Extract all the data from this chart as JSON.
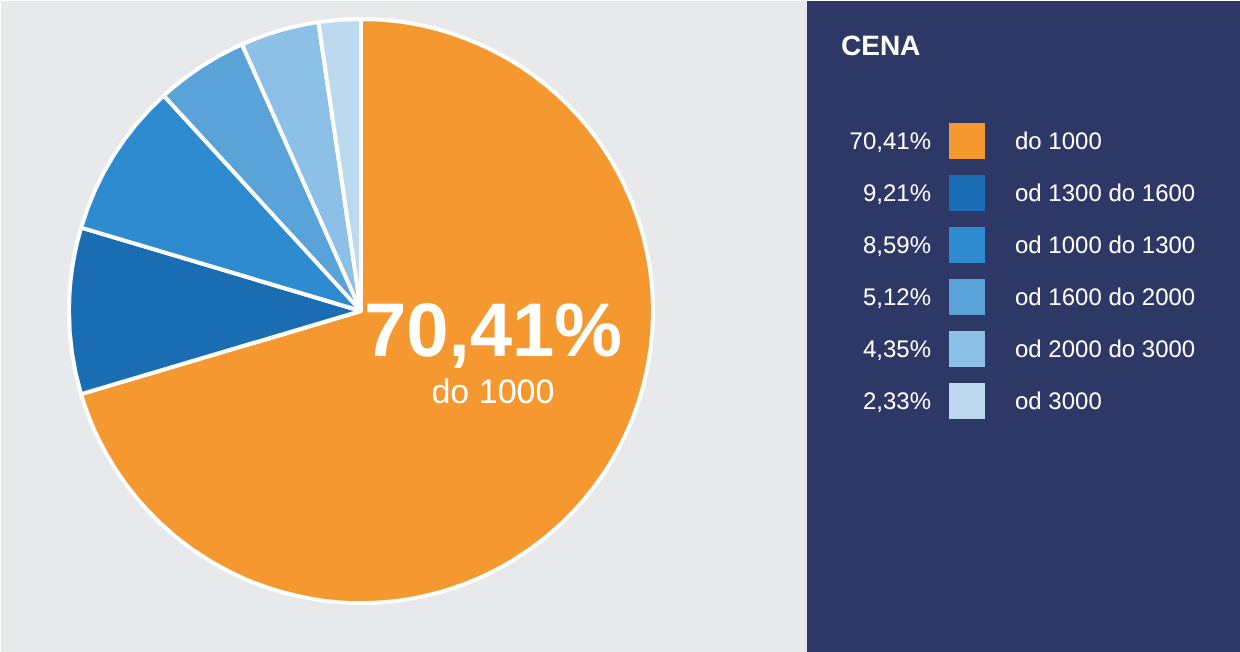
{
  "chart_data": {
    "type": "pie",
    "legend_title": "CENA",
    "categories": [
      "do 1000",
      "od 1300 do 1600",
      "od 1000 do 1300",
      "od 1600 do 2000",
      "od 2000 do 3000",
      "od 3000"
    ],
    "values": [
      70.41,
      9.21,
      8.59,
      5.12,
      4.35,
      2.33
    ],
    "value_labels": [
      "70,41%",
      "9,21%",
      "8,59%",
      "5,12%",
      "4,35%",
      "2,33%"
    ],
    "colors": [
      "#f4982f",
      "#1b6db3",
      "#2e8bd0",
      "#5aa3d8",
      "#8cc0e6",
      "#bcd9f0"
    ],
    "legend": "right"
  }
}
